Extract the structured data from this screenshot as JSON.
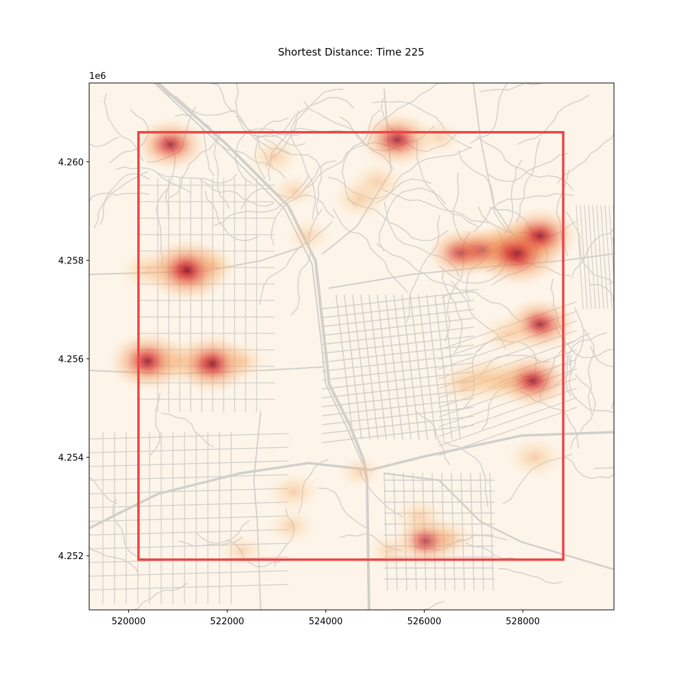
{
  "chart_data": {
    "type": "heatmap",
    "title": "Shortest Distance: Time 225",
    "xlabel": "",
    "ylabel": "",
    "y_offset_text": "1e6",
    "xlim": [
      519200,
      529850
    ],
    "ylim": [
      4250900,
      4261600
    ],
    "x_ticks": [
      520000,
      522000,
      524000,
      526000,
      528000
    ],
    "x_tick_labels": [
      "520000",
      "522000",
      "524000",
      "526000",
      "528000"
    ],
    "y_ticks": [
      4252000,
      4254000,
      4256000,
      4258000,
      4260000
    ],
    "y_tick_labels": [
      "4.252",
      "4.254",
      "4.256",
      "4.258",
      "4.260"
    ],
    "grid": false,
    "background_color": "#fdf5ea",
    "road_color": "#d2cfcb",
    "boundary": {
      "color": "#ee4444",
      "x0": 520200,
      "x1": 528820,
      "y0": 4251920,
      "y1": 4260600
    },
    "hotspots": [
      {
        "x": 520850,
        "y": 4260350,
        "intensity": 0.6
      },
      {
        "x": 522950,
        "y": 4260100,
        "intensity": 0.25
      },
      {
        "x": 523350,
        "y": 4259400,
        "intensity": 0.15
      },
      {
        "x": 524700,
        "y": 4259250,
        "intensity": 0.35
      },
      {
        "x": 525050,
        "y": 4259600,
        "intensity": 0.3
      },
      {
        "x": 525450,
        "y": 4260450,
        "intensity": 0.65
      },
      {
        "x": 526300,
        "y": 4260500,
        "intensity": 0.15
      },
      {
        "x": 523650,
        "y": 4258500,
        "intensity": 0.15
      },
      {
        "x": 520400,
        "y": 4257800,
        "intensity": 0.35
      },
      {
        "x": 521200,
        "y": 4257800,
        "intensity": 0.85
      },
      {
        "x": 521700,
        "y": 4257900,
        "intensity": 0.25
      },
      {
        "x": 526750,
        "y": 4258150,
        "intensity": 0.55
      },
      {
        "x": 527200,
        "y": 4258200,
        "intensity": 0.5
      },
      {
        "x": 527650,
        "y": 4258300,
        "intensity": 0.4
      },
      {
        "x": 527900,
        "y": 4258150,
        "intensity": 0.95
      },
      {
        "x": 528350,
        "y": 4258500,
        "intensity": 0.7
      },
      {
        "x": 528350,
        "y": 4256700,
        "intensity": 0.6
      },
      {
        "x": 527700,
        "y": 4256500,
        "intensity": 0.3
      },
      {
        "x": 520400,
        "y": 4255950,
        "intensity": 0.75
      },
      {
        "x": 521000,
        "y": 4255950,
        "intensity": 0.4
      },
      {
        "x": 521700,
        "y": 4255900,
        "intensity": 0.75
      },
      {
        "x": 522300,
        "y": 4255950,
        "intensity": 0.25
      },
      {
        "x": 527200,
        "y": 4255600,
        "intensity": 0.45
      },
      {
        "x": 527600,
        "y": 4255550,
        "intensity": 0.45
      },
      {
        "x": 528200,
        "y": 4255550,
        "intensity": 0.65
      },
      {
        "x": 526800,
        "y": 4255500,
        "intensity": 0.3
      },
      {
        "x": 528250,
        "y": 4254000,
        "intensity": 0.35
      },
      {
        "x": 523350,
        "y": 4253300,
        "intensity": 0.3
      },
      {
        "x": 523300,
        "y": 4252600,
        "intensity": 0.2
      },
      {
        "x": 525900,
        "y": 4252800,
        "intensity": 0.25
      },
      {
        "x": 526050,
        "y": 4252300,
        "intensity": 0.5
      },
      {
        "x": 526500,
        "y": 4252350,
        "intensity": 0.3
      },
      {
        "x": 525300,
        "y": 4252100,
        "intensity": 0.15
      },
      {
        "x": 522300,
        "y": 4252100,
        "intensity": 0.12
      },
      {
        "x": 524700,
        "y": 4253700,
        "intensity": 0.12
      }
    ]
  }
}
